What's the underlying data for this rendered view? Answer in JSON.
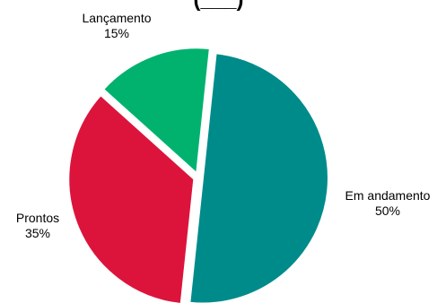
{
  "chart_data": {
    "type": "pie",
    "title": "(___)",
    "slices": [
      {
        "label": "Em andamento",
        "value": 50,
        "pct_label": "50%",
        "color": "#008B8B"
      },
      {
        "label": "Prontos",
        "value": 35,
        "pct_label": "35%",
        "color": "#DC143C"
      },
      {
        "label": "Lançamento",
        "value": 15,
        "pct_label": "15%",
        "color": "#00B26E"
      }
    ],
    "legend": "none",
    "exploded": true
  }
}
